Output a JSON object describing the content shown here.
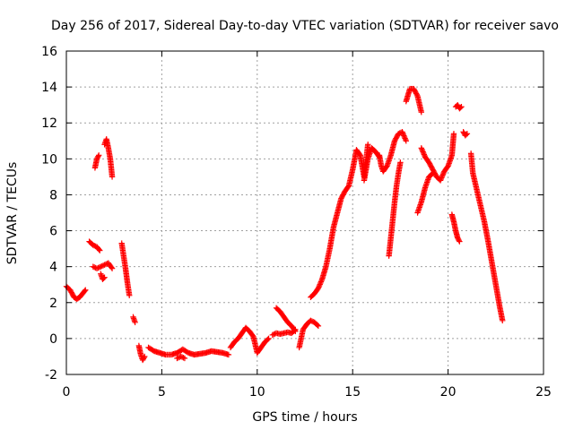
{
  "chart_data": {
    "type": "scatter",
    "title": "Day 256 of 2017, Sidereal Day-to-day VTEC variation (SDTVAR) for receiver savo",
    "xlabel": "GPS time / hours",
    "ylabel": "SDTVAR / TECUs",
    "xlim": [
      0,
      25
    ],
    "ylim": [
      -2,
      16
    ],
    "xticks": [
      0,
      5,
      10,
      15,
      20,
      25
    ],
    "yticks": [
      -2,
      0,
      2,
      4,
      6,
      8,
      10,
      12,
      14,
      16
    ],
    "grid": true,
    "marker": "+",
    "color": "#ff0000",
    "segments": [
      {
        "x": [
          0.0,
          0.2,
          0.4,
          0.55,
          0.7,
          0.85,
          1.0
        ],
        "y": [
          2.9,
          2.7,
          2.3,
          2.2,
          2.3,
          2.5,
          2.7
        ]
      },
      {
        "x": [
          1.2,
          1.4,
          1.6,
          1.75
        ],
        "y": [
          5.4,
          5.2,
          5.1,
          4.9
        ]
      },
      {
        "x": [
          1.4,
          1.6,
          1.8,
          2.0,
          2.2,
          2.4
        ],
        "y": [
          4.0,
          3.9,
          4.0,
          4.1,
          4.2,
          3.9
        ]
      },
      {
        "x": [
          1.8,
          1.9,
          2.0
        ],
        "y": [
          3.6,
          3.3,
          3.4
        ]
      },
      {
        "x": [
          1.5,
          1.6,
          1.7
        ],
        "y": [
          9.5,
          10.0,
          10.2
        ]
      },
      {
        "x": [
          2.0,
          2.1,
          2.2,
          2.3,
          2.4
        ],
        "y": [
          10.8,
          11.1,
          10.6,
          10.0,
          9.0
        ]
      },
      {
        "x": [
          2.9,
          3.0,
          3.1,
          3.2,
          3.3
        ],
        "y": [
          5.3,
          4.6,
          3.9,
          3.1,
          2.4
        ]
      },
      {
        "x": [
          3.5,
          3.6
        ],
        "y": [
          1.2,
          0.9
        ]
      },
      {
        "x": [
          3.8,
          3.9,
          4.0,
          4.1
        ],
        "y": [
          -0.4,
          -0.9,
          -1.2,
          -1.0
        ]
      },
      {
        "x": [
          4.3,
          4.6,
          4.9,
          5.2,
          5.5,
          5.8,
          6.1,
          6.4,
          6.7,
          7.0,
          7.3,
          7.6,
          7.9,
          8.2,
          8.5
        ],
        "y": [
          -0.5,
          -0.7,
          -0.8,
          -0.9,
          -0.9,
          -0.8,
          -0.6,
          -0.8,
          -0.9,
          -0.85,
          -0.8,
          -0.7,
          -0.75,
          -0.8,
          -0.9
        ]
      },
      {
        "x": [
          5.8,
          6.0,
          6.2
        ],
        "y": [
          -1.1,
          -1.0,
          -1.1
        ]
      },
      {
        "x": [
          8.6,
          8.8,
          9.0,
          9.2,
          9.4,
          9.6,
          9.8,
          10.0,
          10.2,
          10.4,
          10.6
        ],
        "y": [
          -0.5,
          -0.2,
          0.0,
          0.3,
          0.6,
          0.4,
          0.1,
          -0.8,
          -0.5,
          -0.2,
          0.0
        ]
      },
      {
        "x": [
          11.0,
          11.2,
          11.4,
          11.6,
          11.8,
          12.0
        ],
        "y": [
          1.7,
          1.5,
          1.2,
          0.9,
          0.7,
          0.4
        ]
      },
      {
        "x": [
          10.8,
          11.0,
          11.2,
          11.4,
          11.6,
          11.8,
          12.0
        ],
        "y": [
          0.2,
          0.3,
          0.25,
          0.3,
          0.35,
          0.3,
          0.5
        ]
      },
      {
        "x": [
          12.2,
          12.4,
          12.6,
          12.8,
          13.0,
          13.2
        ],
        "y": [
          -0.5,
          0.5,
          0.8,
          1.0,
          0.9,
          0.7
        ]
      },
      {
        "x": [
          12.8,
          13.0,
          13.2,
          13.4,
          13.6,
          13.8,
          14.0,
          14.2,
          14.4,
          14.6,
          14.8,
          15.0,
          15.2,
          15.4,
          15.6,
          15.8
        ],
        "y": [
          2.3,
          2.5,
          2.8,
          3.3,
          4.0,
          5.0,
          6.2,
          7.0,
          7.8,
          8.2,
          8.5,
          9.4,
          10.5,
          10.2,
          9.0,
          10.8
        ]
      },
      {
        "x": [
          15.6,
          15.8,
          16.0,
          16.2,
          16.4
        ],
        "y": [
          8.8,
          10.0,
          10.6,
          10.4,
          10.1
        ]
      },
      {
        "x": [
          16.4,
          16.5,
          16.6,
          16.8,
          17.0,
          17.2,
          17.4,
          17.6,
          17.8
        ],
        "y": [
          10.2,
          9.6,
          9.3,
          9.6,
          10.2,
          11.0,
          11.4,
          11.5,
          11.0
        ]
      },
      {
        "x": [
          16.9,
          17.0,
          17.1,
          17.2,
          17.3,
          17.4,
          17.5
        ],
        "y": [
          4.6,
          5.6,
          6.6,
          7.6,
          8.5,
          9.2,
          9.8
        ]
      },
      {
        "x": [
          17.8,
          18.0,
          18.2,
          18.4,
          18.6
        ],
        "y": [
          13.2,
          13.9,
          13.9,
          13.5,
          12.6
        ]
      },
      {
        "x": [
          18.6,
          18.8,
          19.0,
          19.2,
          19.4,
          19.6,
          19.8,
          20.0,
          20.2,
          20.3
        ],
        "y": [
          10.6,
          10.1,
          9.8,
          9.4,
          9.0,
          8.8,
          9.3,
          9.6,
          10.2,
          11.4
        ]
      },
      {
        "x": [
          18.4,
          18.6,
          18.8,
          19.0,
          19.2
        ],
        "y": [
          7.0,
          7.6,
          8.4,
          9.0,
          9.2
        ]
      },
      {
        "x": [
          20.2,
          20.3,
          20.4,
          20.5,
          20.6
        ],
        "y": [
          6.9,
          6.5,
          6.0,
          5.6,
          5.4
        ]
      },
      {
        "x": [
          20.4,
          20.5,
          20.6,
          20.7
        ],
        "y": [
          12.9,
          13.0,
          12.8,
          12.9
        ]
      },
      {
        "x": [
          20.8,
          20.9,
          21.0
        ],
        "y": [
          11.5,
          11.3,
          11.4
        ]
      },
      {
        "x": [
          21.2,
          21.3,
          21.5,
          21.7,
          21.9,
          22.1,
          22.3,
          22.5,
          22.7,
          22.85
        ],
        "y": [
          10.3,
          9.2,
          8.3,
          7.4,
          6.5,
          5.4,
          4.2,
          3.0,
          1.8,
          1.0
        ]
      }
    ]
  }
}
